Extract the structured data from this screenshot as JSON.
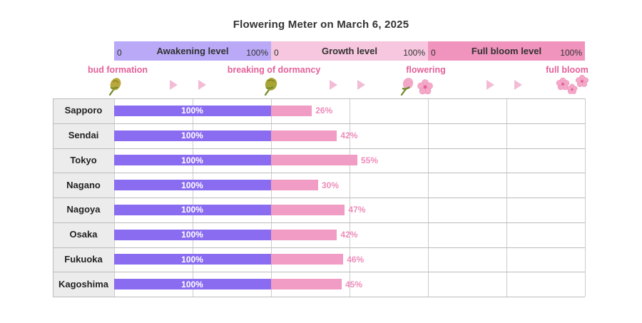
{
  "title": "Flowering Meter  on  March 6, 2025",
  "levels": [
    {
      "name": "Awakening level",
      "min": "0",
      "max": "100%",
      "color": "#b9a9f6"
    },
    {
      "name": "Growth level",
      "min": "0",
      "max": "100%",
      "color": "#f6c7de"
    },
    {
      "name": "Full bloom level",
      "min": "0",
      "max": "100%",
      "color": "#f094bd"
    }
  ],
  "stages": [
    "bud formation",
    "breaking of dormancy",
    "flowering",
    "full bloom"
  ],
  "colors": {
    "awakening_bar": "#8a6cf0",
    "growth_bar": "#f09cc4",
    "stage_text": "#e4609a",
    "arrow": "#f3bcd6"
  },
  "chart_data": {
    "type": "bar",
    "orientation": "horizontal",
    "categories": [
      "Sapporo",
      "Sendai",
      "Tokyo",
      "Nagano",
      "Nagoya",
      "Osaka",
      "Fukuoka",
      "Kagoshima"
    ],
    "series": [
      {
        "name": "Awakening level",
        "values": [
          100,
          100,
          100,
          100,
          100,
          100,
          100,
          100
        ],
        "labels": [
          "100%",
          "100%",
          "100%",
          "100%",
          "100%",
          "100%",
          "100%",
          "100%"
        ]
      },
      {
        "name": "Growth level",
        "values": [
          26,
          42,
          55,
          30,
          47,
          42,
          46,
          45
        ],
        "labels": [
          "26%",
          "42%",
          "55%",
          "30%",
          "47%",
          "42%",
          "46%",
          "45%"
        ]
      },
      {
        "name": "Full bloom level",
        "values": [
          0,
          0,
          0,
          0,
          0,
          0,
          0,
          0
        ]
      }
    ],
    "xlim": [
      0,
      100
    ],
    "grid": true
  }
}
